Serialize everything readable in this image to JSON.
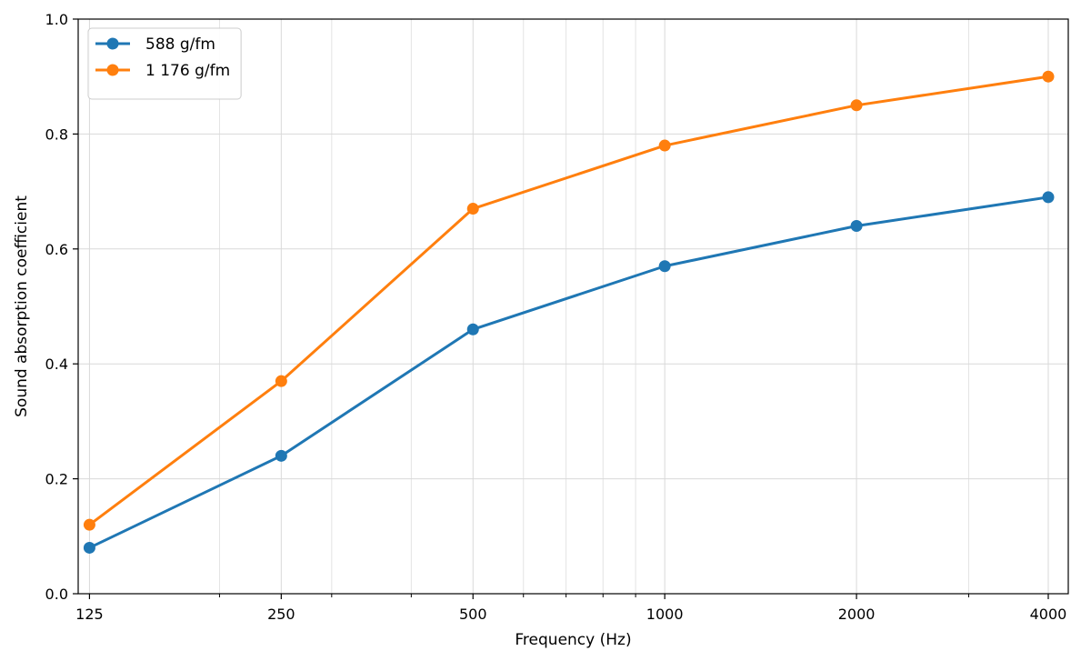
{
  "chart_data": {
    "type": "line",
    "title": "",
    "xlabel": "Frequency (Hz)",
    "ylabel": "Sound absorption coefficient",
    "x_scale": "log",
    "x": [
      125,
      250,
      500,
      1000,
      2000,
      4000
    ],
    "x_tick_labels": [
      "125",
      "250",
      "500",
      "1000",
      "2000",
      "4000"
    ],
    "xlim": [
      120,
      4300
    ],
    "ylim": [
      0.0,
      1.0
    ],
    "y_ticks": [
      0.0,
      0.2,
      0.4,
      0.6,
      0.8,
      1.0
    ],
    "y_tick_labels": [
      "0.0",
      "0.2",
      "0.4",
      "0.6",
      "0.8",
      "1.0"
    ],
    "grid": true,
    "legend_position": "top-left",
    "series": [
      {
        "name": "588 g/fm",
        "color": "#1f77b4",
        "values": [
          0.08,
          0.24,
          0.46,
          0.57,
          0.64,
          0.69
        ]
      },
      {
        "name": "1 176 g/fm",
        "color": "#ff7f0e",
        "values": [
          0.12,
          0.37,
          0.67,
          0.78,
          0.85,
          0.9
        ]
      }
    ]
  }
}
